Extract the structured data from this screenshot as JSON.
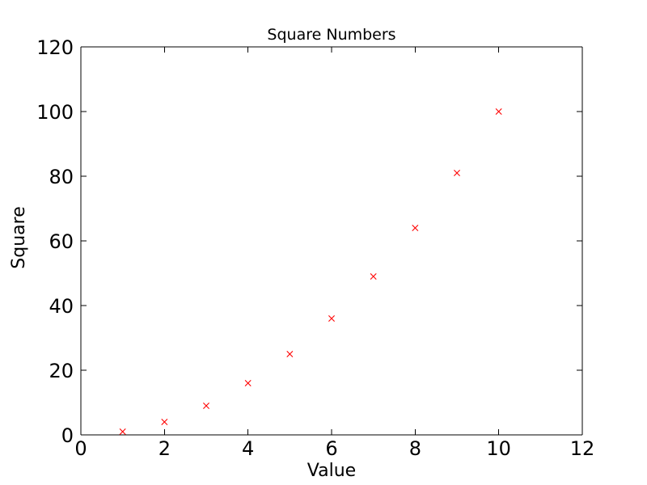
{
  "chart_data": {
    "type": "scatter",
    "title": "Square Numbers",
    "xlabel": "Value",
    "ylabel": "Square",
    "x": [
      1,
      2,
      3,
      4,
      5,
      6,
      7,
      8,
      9,
      10
    ],
    "y": [
      1,
      4,
      9,
      16,
      25,
      36,
      49,
      64,
      81,
      100
    ],
    "xlim": [
      0,
      12
    ],
    "ylim": [
      0,
      120
    ],
    "xticks": [
      0,
      2,
      4,
      6,
      8,
      10,
      12
    ],
    "yticks": [
      0,
      20,
      40,
      60,
      80,
      100,
      120
    ],
    "marker": "x",
    "marker_color": "#ff0000",
    "axis_color": "#000000",
    "background": "#ffffff",
    "grid": false,
    "legend": "none",
    "tick_direction": "in",
    "tick_sides": [
      "top",
      "bottom",
      "left",
      "right"
    ]
  }
}
